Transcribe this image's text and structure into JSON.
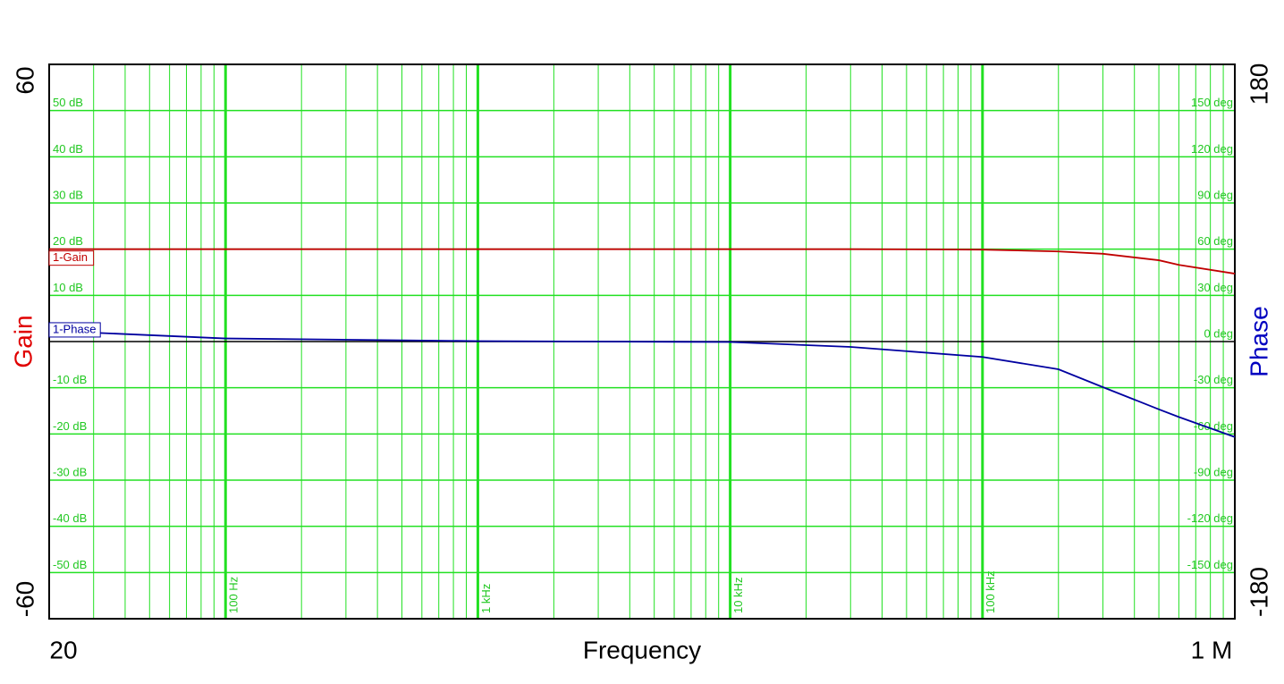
{
  "chart_data": {
    "type": "line",
    "x_label": "Frequency",
    "y_label": "Gain",
    "y2_label": "Phase",
    "xscale": "log",
    "xlim": [
      20,
      1000000
    ],
    "xticks": [
      20,
      {
        "value": 100,
        "label": "100 Hz"
      },
      {
        "value": 1000,
        "label": "1 kHz"
      },
      {
        "value": 10000,
        "label": "10 kHz"
      },
      {
        "value": 100000,
        "label": "100 kHz"
      },
      {
        "value": 1000000,
        "label": "1 M"
      }
    ],
    "xminorticks": [
      30,
      40,
      50,
      60,
      70,
      80,
      90,
      200,
      300,
      400,
      500,
      600,
      700,
      800,
      900,
      2000,
      3000,
      4000,
      5000,
      6000,
      7000,
      8000,
      9000,
      20000,
      30000,
      40000,
      50000,
      60000,
      70000,
      80000,
      90000,
      200000,
      300000,
      400000,
      500000,
      600000,
      700000,
      800000,
      900000
    ],
    "ylim": [
      -60,
      60
    ],
    "yticks": [
      -60,
      {
        "value": -50,
        "label": "-50 dB"
      },
      {
        "value": -40,
        "label": "-40 dB"
      },
      {
        "value": -30,
        "label": "-30 dB"
      },
      {
        "value": -20,
        "label": "-20 dB"
      },
      {
        "value": -10,
        "label": "-10 dB"
      },
      {
        "value": 10,
        "label": "10 dB"
      },
      {
        "value": 20,
        "label": "20 dB"
      },
      {
        "value": 30,
        "label": "30 dB"
      },
      {
        "value": 40,
        "label": "40 dB"
      },
      {
        "value": 50,
        "label": "50 dB"
      },
      60
    ],
    "y2lim": [
      -180,
      180
    ],
    "y2ticks": [
      -180,
      {
        "value": -150,
        "label": "-150 deg"
      },
      {
        "value": -120,
        "label": "-120 deg"
      },
      {
        "value": -90,
        "label": "-90 deg"
      },
      {
        "value": -60,
        "label": "-60 deg"
      },
      {
        "value": -30,
        "label": "-30 deg"
      },
      {
        "value": 0,
        "label": "0 deg"
      },
      {
        "value": 30,
        "label": "30 deg"
      },
      {
        "value": 60,
        "label": "60 deg"
      },
      {
        "value": 90,
        "label": "90 deg"
      },
      {
        "value": 120,
        "label": "120 deg"
      },
      {
        "value": 150,
        "label": "150 deg"
      },
      180
    ],
    "grid": true,
    "grid_color": "#22e022",
    "x": [
      20,
      100,
      1000,
      10000,
      30000,
      100000,
      200000,
      300000,
      500000,
      600000,
      1000000
    ],
    "series": [
      {
        "name": "1-Gain",
        "color": "#c00000",
        "values": [
          20,
          20,
          20,
          20,
          20,
          19.9,
          19.5,
          19.0,
          17.6,
          16.6,
          14.7
        ]
      },
      {
        "name": "1-Phase",
        "color": "#0000a0",
        "axis": "y2",
        "values": [
          7,
          2,
          0.3,
          -0.3,
          -3.5,
          -10,
          -18,
          -29.6,
          -44,
          -49,
          -62
        ]
      }
    ]
  }
}
